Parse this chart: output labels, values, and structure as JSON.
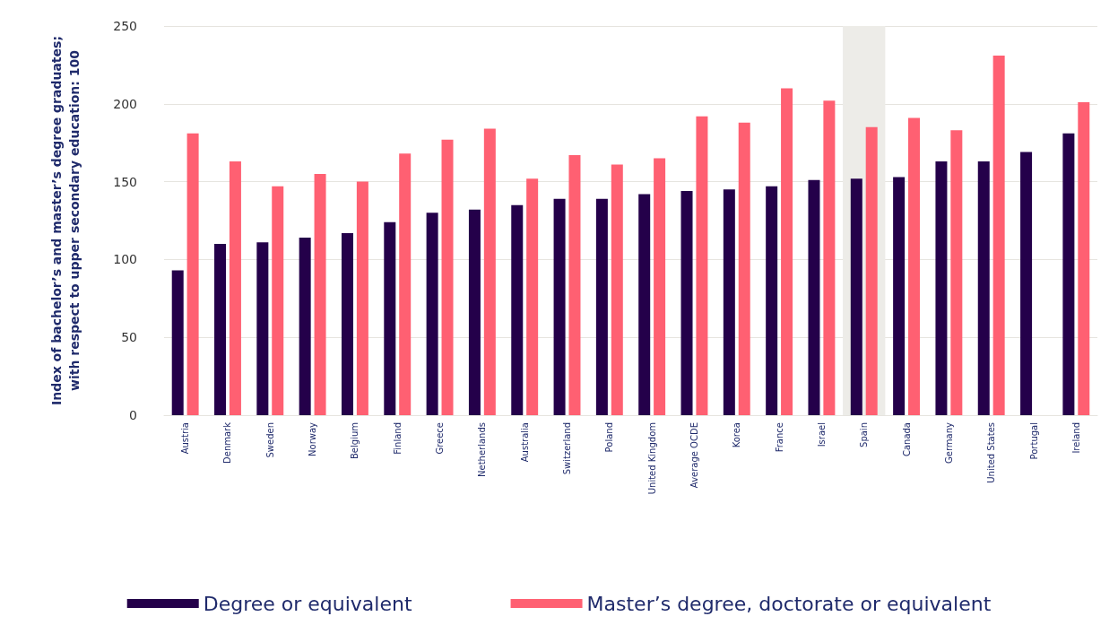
{
  "chart_data": {
    "type": "bar",
    "ylabel": "Index of bachelor’s and master’s degree graduates;\nwith respect to upper secondary education: 100",
    "categories": [
      "Austria",
      "Denmark",
      "Sweden",
      "Norway",
      "Belgium",
      "Finland",
      "Greece",
      "Netherlands",
      "Australia",
      "Switzerland",
      "Poland",
      "United Kingdom",
      "Average OCDE",
      "Korea",
      "France",
      "Israel",
      "Spain",
      "Canada",
      "Germany",
      "United States",
      "Portugal",
      "Ireland"
    ],
    "series": [
      {
        "name": "Degree or equivalent",
        "color": "#24004a",
        "values": [
          93,
          110,
          111,
          114,
          117,
          124,
          130,
          132,
          135,
          139,
          139,
          142,
          144,
          145,
          147,
          151,
          152,
          153,
          163,
          163,
          169,
          181
        ]
      },
      {
        "name": "Master’s degree, doctorate or equivalent",
        "color": "#ff6072",
        "values": [
          181,
          163,
          147,
          155,
          150,
          168,
          177,
          184,
          152,
          167,
          161,
          165,
          192,
          188,
          210,
          202,
          185,
          191,
          183,
          231,
          null,
          201
        ]
      }
    ],
    "ylim": [
      0,
      250
    ],
    "yticks": [
      0,
      50,
      100,
      150,
      200,
      250
    ],
    "grid": "y",
    "legend": "bottom",
    "bands": [
      {
        "axis": "x",
        "from": "Spain",
        "to": "Spain",
        "color": "#edece8"
      }
    ]
  }
}
